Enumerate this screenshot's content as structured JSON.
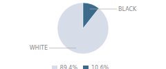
{
  "chart_data": {
    "type": "pie",
    "categories": [
      "WHITE",
      "BLACK"
    ],
    "values": [
      89.4,
      10.6
    ],
    "value_labels": [
      "89.4%",
      "10.6%"
    ],
    "colors": [
      "#d6dde8",
      "#3a6b8a"
    ],
    "legend": "bottom"
  }
}
